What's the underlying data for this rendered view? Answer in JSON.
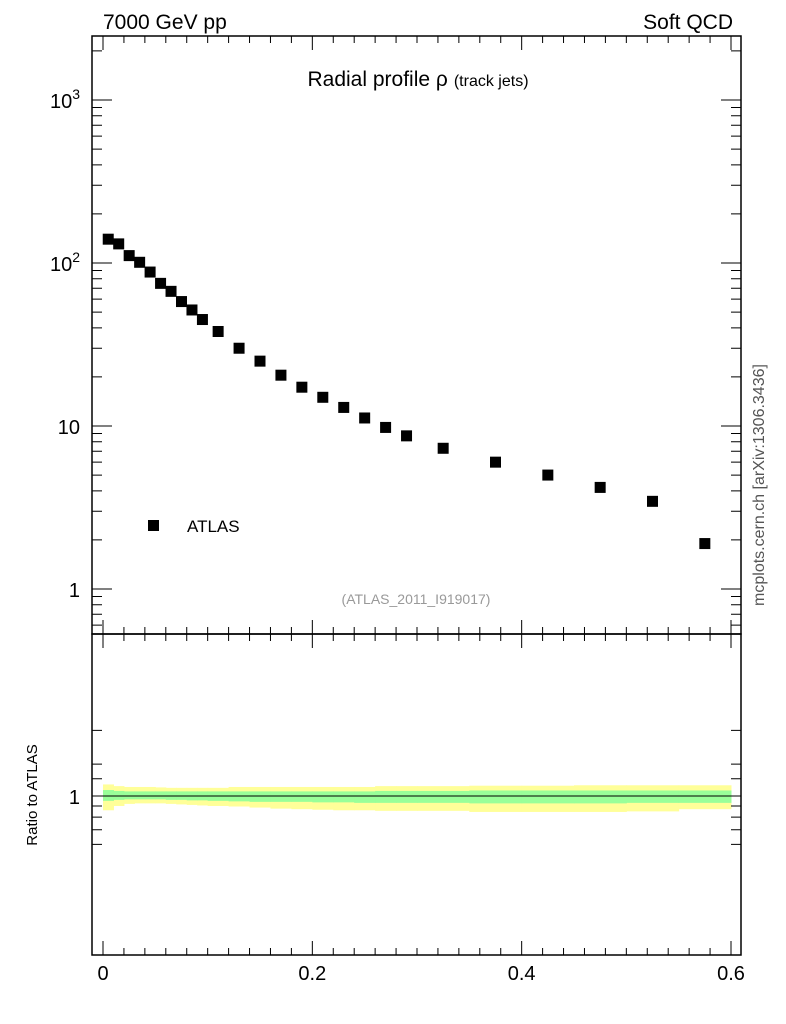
{
  "header": {
    "left": "7000 GeV pp",
    "right": "Soft QCD"
  },
  "plot_title": {
    "main": "Radial profile ρ",
    "sub": "(track jets)"
  },
  "analysis_label": "(ATLAS_2011_I919017)",
  "side_label": "mcplots.cern.ch [arXiv:1306.3436]",
  "ratio_ylabel": "Ratio to ATLAS",
  "legend": {
    "entries": [
      "ATLAS"
    ],
    "placement": "lower-left"
  },
  "colors": {
    "data_marker": "#000000",
    "band_outer": "#ffff99",
    "band_inner": "#99ff99",
    "frame": "#000000",
    "analysis_text": "#999999"
  },
  "chart_data": [
    {
      "type": "scatter",
      "panel": "main",
      "title": "Radial profile ρ (track jets)",
      "y_scale": "log",
      "xlim": [
        0,
        0.6
      ],
      "ylim": [
        0.55,
        2500
      ],
      "x_ticks": [
        "0",
        "0.2",
        "0.4",
        "0.6"
      ],
      "y_tick_labels": [
        "1",
        "10",
        "10^2",
        "10^3"
      ],
      "series": [
        {
          "name": "ATLAS",
          "x": [
            0.005,
            0.015,
            0.025,
            0.035,
            0.045,
            0.055,
            0.065,
            0.075,
            0.085,
            0.095,
            0.11,
            0.13,
            0.15,
            0.17,
            0.19,
            0.21,
            0.23,
            0.25,
            0.27,
            0.29,
            0.325,
            0.375,
            0.425,
            0.475,
            0.525,
            0.575
          ],
          "y": [
            140,
            131,
            111,
            101,
            88,
            75,
            67,
            58,
            51.5,
            45,
            38,
            30,
            25,
            20.5,
            17.3,
            15,
            13,
            11.2,
            9.8,
            8.7,
            7.3,
            6,
            5,
            4.2,
            3.45,
            1.9
          ]
        }
      ]
    },
    {
      "type": "area",
      "panel": "ratio",
      "ylabel": "Ratio to ATLAS",
      "xlim": [
        0,
        0.6
      ],
      "ylim": [
        0.5,
        2.0
      ],
      "y_tick_labels": [
        "1"
      ],
      "x_edges": [
        0.0,
        0.01,
        0.02,
        0.03,
        0.04,
        0.05,
        0.06,
        0.07,
        0.08,
        0.09,
        0.1,
        0.12,
        0.14,
        0.16,
        0.18,
        0.2,
        0.22,
        0.24,
        0.26,
        0.28,
        0.3,
        0.35,
        0.4,
        0.45,
        0.5,
        0.55,
        0.6
      ],
      "bands": [
        {
          "name": "total",
          "color": "#ffff99",
          "low": [
            0.86,
            0.9,
            0.92,
            0.925,
            0.925,
            0.925,
            0.92,
            0.915,
            0.91,
            0.905,
            0.9,
            0.895,
            0.885,
            0.875,
            0.87,
            0.865,
            0.86,
            0.86,
            0.855,
            0.855,
            0.855,
            0.845,
            0.845,
            0.845,
            0.85,
            0.87
          ],
          "high": [
            1.13,
            1.11,
            1.1,
            1.1,
            1.1,
            1.095,
            1.09,
            1.09,
            1.09,
            1.09,
            1.09,
            1.1,
            1.1,
            1.1,
            1.1,
            1.1,
            1.1,
            1.1,
            1.11,
            1.11,
            1.11,
            1.115,
            1.115,
            1.12,
            1.12,
            1.12
          ]
        },
        {
          "name": "stat",
          "color": "#99ff99",
          "low": [
            0.95,
            0.96,
            0.965,
            0.965,
            0.965,
            0.965,
            0.96,
            0.96,
            0.955,
            0.955,
            0.95,
            0.945,
            0.94,
            0.94,
            0.94,
            0.935,
            0.935,
            0.93,
            0.93,
            0.93,
            0.93,
            0.925,
            0.925,
            0.925,
            0.93,
            0.93
          ],
          "high": [
            1.065,
            1.055,
            1.05,
            1.05,
            1.05,
            1.05,
            1.05,
            1.05,
            1.05,
            1.05,
            1.05,
            1.05,
            1.05,
            1.05,
            1.05,
            1.05,
            1.05,
            1.05,
            1.055,
            1.055,
            1.055,
            1.06,
            1.06,
            1.06,
            1.06,
            1.06
          ]
        }
      ]
    }
  ]
}
